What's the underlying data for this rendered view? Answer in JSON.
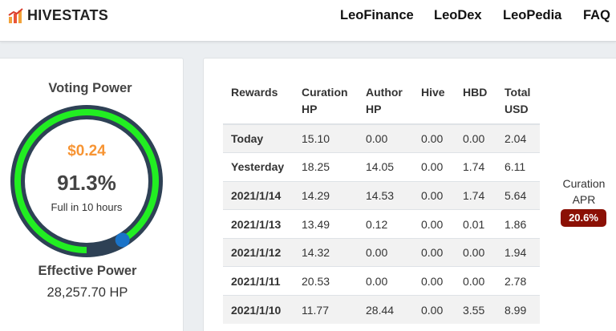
{
  "nav": {
    "brand": "HIVESTATS",
    "links": [
      "LeoFinance",
      "LeoDex",
      "LeoPedia",
      "FAQ"
    ]
  },
  "voting": {
    "title": "Voting Power",
    "usd_value": "$0.24",
    "percent_text": "91.3%",
    "percent": 91.3,
    "full_in": "Full in 10 hours",
    "effective_title": "Effective Power",
    "effective_value": "28,257.70 HP"
  },
  "table": {
    "headers": [
      "Rewards",
      "Curation HP",
      "Author HP",
      "Hive",
      "HBD",
      "Total USD"
    ],
    "rows": [
      [
        "Today",
        "15.10",
        "0.00",
        "0.00",
        "0.00",
        "2.04"
      ],
      [
        "Yesterday",
        "18.25",
        "14.05",
        "0.00",
        "1.74",
        "6.11"
      ],
      [
        "2021/1/14",
        "14.29",
        "14.53",
        "0.00",
        "1.74",
        "5.64"
      ],
      [
        "2021/1/13",
        "13.49",
        "0.12",
        "0.00",
        "0.01",
        "1.86"
      ],
      [
        "2021/1/12",
        "14.32",
        "0.00",
        "0.00",
        "0.00",
        "1.94"
      ],
      [
        "2021/1/11",
        "20.53",
        "0.00",
        "0.00",
        "0.00",
        "2.78"
      ],
      [
        "2021/1/10",
        "11.77",
        "28.44",
        "0.00",
        "3.55",
        "8.99"
      ]
    ]
  },
  "apr": {
    "label": "Curation APR",
    "value": "20.6%"
  },
  "colors": {
    "gauge_track": "#2e4155",
    "gauge_fill": "#22ee22",
    "gauge_handle": "#1a73c8",
    "usd_value": "#f79433",
    "apr_badge": "#8b1005"
  },
  "icons": {
    "brand": "bar-chart-icon",
    "gauge_handle": "dot-handle-icon"
  }
}
